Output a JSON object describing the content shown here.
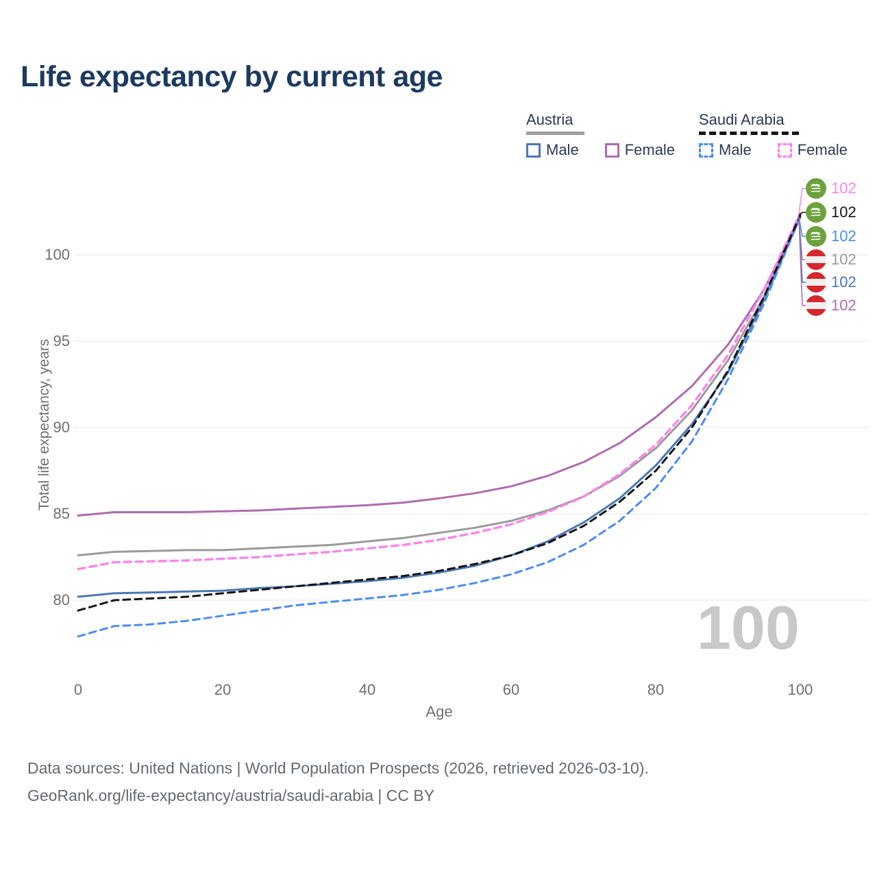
{
  "title": "Life expectancy by current age",
  "legend": {
    "groups": [
      {
        "name": "Austria",
        "line_style": "solid",
        "underline_color": "#9e9e9e",
        "items": [
          {
            "label": "Male",
            "color": "#4a77b4",
            "dashed": false
          },
          {
            "label": "Female",
            "color": "#ae6cae",
            "dashed": false
          }
        ]
      },
      {
        "name": "Saudi Arabia",
        "line_style": "dashed",
        "underline_color": "#141414",
        "items": [
          {
            "label": "Male",
            "color": "#4b8bf5",
            "dashed": true
          },
          {
            "label": "Female",
            "color": "#fb85e9",
            "dashed": true
          }
        ]
      }
    ]
  },
  "chart_data": {
    "type": "line",
    "title": "Life expectancy by current age",
    "xlabel": "Age",
    "ylabel": "Total life expectancy, years",
    "xticks": [
      0,
      20,
      40,
      60,
      80,
      100
    ],
    "yticks": [
      100,
      95,
      90,
      85,
      80
    ],
    "xlim": [
      0,
      100
    ],
    "ylim": [
      77.5,
      102.5
    ],
    "grid": "horizontal",
    "legend_position": "top-right",
    "watermark": "100",
    "x": [
      0,
      5,
      10,
      15,
      20,
      25,
      30,
      35,
      40,
      45,
      50,
      55,
      60,
      65,
      70,
      75,
      80,
      85,
      90,
      95,
      100
    ],
    "series": [
      {
        "id": "austria_total",
        "name": "Austria",
        "country": "Austria",
        "sex": "Total",
        "color": "#9a9a9a",
        "dash": "solid",
        "values": [
          82.6,
          82.8,
          82.85,
          82.9,
          82.9,
          83.0,
          83.1,
          83.2,
          83.4,
          83.6,
          83.9,
          84.2,
          84.6,
          85.2,
          86.0,
          87.2,
          88.8,
          91.0,
          93.9,
          97.6,
          102.2
        ]
      },
      {
        "id": "austria_female",
        "name": "Austria Female",
        "country": "Austria",
        "sex": "Female",
        "color": "#ae6cae",
        "dash": "solid",
        "values": [
          84.9,
          85.1,
          85.1,
          85.1,
          85.15,
          85.2,
          85.3,
          85.4,
          85.5,
          85.65,
          85.9,
          86.2,
          86.6,
          87.2,
          88.0,
          89.1,
          90.6,
          92.4,
          94.8,
          98.0,
          102.2
        ]
      },
      {
        "id": "austria_male",
        "name": "Austria Male",
        "country": "Austria",
        "sex": "Male",
        "color": "#4a77b4",
        "dash": "solid",
        "values": [
          80.2,
          80.4,
          80.45,
          80.5,
          80.55,
          80.7,
          80.8,
          80.95,
          81.1,
          81.3,
          81.6,
          82.0,
          82.6,
          83.4,
          84.5,
          85.9,
          87.8,
          90.2,
          93.2,
          97.4,
          102.2
        ]
      },
      {
        "id": "saudi_female",
        "name": "Saudi Arabia Female",
        "country": "Saudi Arabia",
        "sex": "Female",
        "color": "#fb85e9",
        "dash": "dashed",
        "values": [
          81.8,
          82.2,
          82.25,
          82.3,
          82.4,
          82.5,
          82.65,
          82.8,
          83.0,
          83.2,
          83.5,
          83.9,
          84.4,
          85.1,
          86.0,
          87.3,
          89.0,
          91.3,
          94.2,
          98.0,
          102.4
        ]
      },
      {
        "id": "saudi_male",
        "name": "Saudi Arabia Male",
        "country": "Saudi Arabia",
        "sex": "Male",
        "color": "#4b8bf5",
        "dash": "dashed",
        "values": [
          77.9,
          78.5,
          78.6,
          78.8,
          79.1,
          79.4,
          79.7,
          79.9,
          80.1,
          80.3,
          80.6,
          81.0,
          81.5,
          82.2,
          83.2,
          84.6,
          86.5,
          89.2,
          92.8,
          97.2,
          102.2
        ]
      },
      {
        "id": "saudi_total",
        "name": "Saudi Arabia",
        "country": "Saudi Arabia",
        "sex": "Total",
        "color": "#141414",
        "dash": "dashed",
        "values": [
          79.4,
          80.0,
          80.1,
          80.2,
          80.4,
          80.6,
          80.8,
          81.0,
          81.2,
          81.4,
          81.7,
          82.1,
          82.6,
          83.3,
          84.3,
          85.7,
          87.5,
          90.0,
          93.3,
          97.6,
          102.3
        ]
      }
    ]
  },
  "end_labels": [
    {
      "value": "102",
      "flag": "saudi",
      "flag_icon": "saudi-arabia-flag-icon",
      "color": "#fb85e9",
      "series_id": "saudi_female"
    },
    {
      "value": "102",
      "flag": "saudi",
      "flag_icon": "saudi-arabia-flag-icon",
      "color": "#141414",
      "series_id": "saudi_total"
    },
    {
      "value": "102",
      "flag": "saudi",
      "flag_icon": "saudi-arabia-flag-icon",
      "color": "#4b8bf5",
      "series_id": "saudi_male"
    },
    {
      "value": "102",
      "flag": "austria",
      "flag_icon": "austria-flag-icon",
      "color": "#9a9a9a",
      "series_id": "austria_total"
    },
    {
      "value": "102",
      "flag": "austria",
      "flag_icon": "austria-flag-icon",
      "color": "#4a77b4",
      "series_id": "austria_male"
    },
    {
      "value": "102",
      "flag": "austria",
      "flag_icon": "austria-flag-icon",
      "color": "#ae6cae",
      "series_id": "austria_female"
    }
  ],
  "footer": {
    "line1": "Data sources: United Nations | World Population Prospects (2026, retrieved 2026-03-10).",
    "line2": "GeoRank.org/life-expectancy/austria/saudi-arabia | CC BY"
  }
}
